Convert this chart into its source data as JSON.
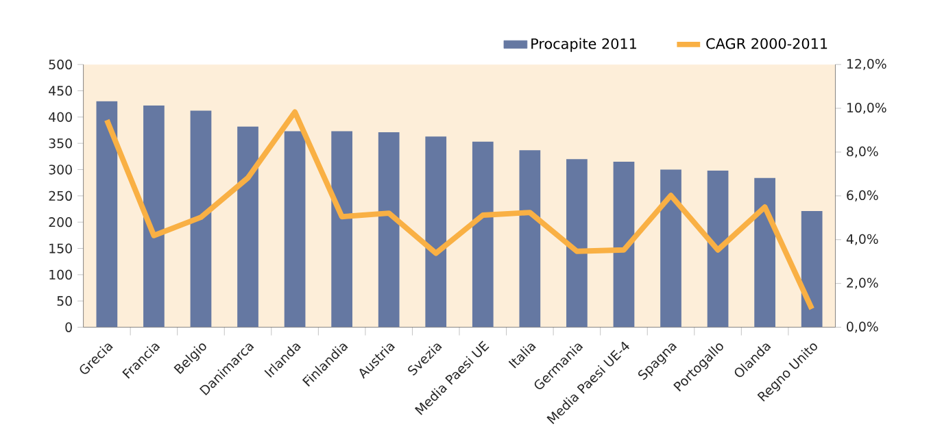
{
  "chart_data": {
    "type": "bar",
    "categories": [
      "Grecia",
      "Francia",
      "Belgio",
      "Danimarca",
      "Irlanda",
      "Finlandia",
      "Austria",
      "Svezia",
      "Media Paesi UE",
      "Italia",
      "Germania",
      "Media Paesi UE-4",
      "Spagna",
      "Portogallo",
      "Olanda",
      "Regno Unito"
    ],
    "series": [
      {
        "name": "Procapite 2011",
        "color": "#6578a2",
        "values": [
          430,
          422,
          412,
          382,
          373,
          373,
          371,
          363,
          353,
          337,
          320,
          315,
          300,
          298,
          284,
          221
        ]
      },
      {
        "name": "CAGR 2000-2011",
        "type": "line",
        "axis": "y2",
        "color": "#f9b044",
        "values": [
          9.46,
          4.19,
          5.02,
          6.82,
          9.83,
          5.05,
          5.21,
          3.38,
          5.12,
          5.24,
          3.47,
          3.53,
          6.02,
          3.53,
          5.49,
          0.84
        ]
      }
    ],
    "ylim": [
      0,
      500
    ],
    "yticks": [
      0,
      50,
      100,
      150,
      200,
      250,
      300,
      350,
      400,
      450,
      500
    ],
    "y2lim": [
      0,
      12
    ],
    "y2ticks": [
      {
        "value": 0,
        "label": "0,0%"
      },
      {
        "value": 2,
        "label": "2,0%"
      },
      {
        "value": 4,
        "label": "4,0%"
      },
      {
        "value": 6,
        "label": "6,0%"
      },
      {
        "value": 8,
        "label": "8,0%"
      },
      {
        "value": 10,
        "label": "10,0%"
      },
      {
        "value": 12,
        "label": "12,0%"
      }
    ],
    "legend": "top right",
    "grid": false,
    "marker": "none",
    "line_style": "solid"
  }
}
